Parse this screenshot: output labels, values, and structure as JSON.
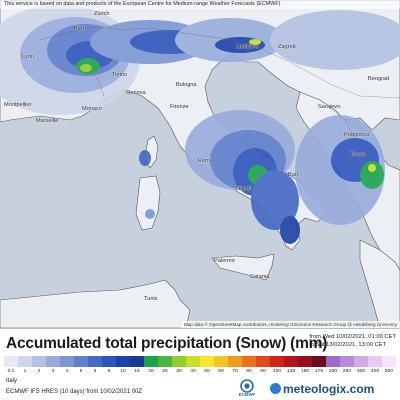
{
  "header_note": "This service is based on data and products of the European Centre for Medium-range Weather Forecasts (ECMWF)",
  "attribution": "Map data © OpenStreetMap contributors, rendering GIScience Research Group @ Heidelberg University",
  "legend": {
    "title": "Accumulated total precipitation (Snow) (mm)",
    "period_from": "from Wed 10/02/2021, 01:00 CET",
    "period_to": "to Sat 13/02/2021, 13:00 CET",
    "ticks": [
      "0.1",
      "1",
      "2",
      "3",
      "4",
      "5",
      "6",
      "8",
      "10",
      "15",
      "20",
      "25",
      "30",
      "40",
      "50",
      "60",
      "70",
      "80",
      "90",
      "100",
      "125",
      "150",
      "175",
      "200",
      "250",
      "300",
      "400",
      "500"
    ],
    "colors": [
      "#e4e9f3",
      "#cdd6ea",
      "#b3c2e2",
      "#98acdc",
      "#7d97d4",
      "#5f7fcc",
      "#4468c4",
      "#2e55bb",
      "#1d41a8",
      "#173b8f",
      "#1aa34a",
      "#47b83c",
      "#8fce2f",
      "#c8de28",
      "#f5e92a",
      "#f5c424",
      "#f19c20",
      "#ec721c",
      "#e3481a",
      "#cf2618",
      "#b5141b",
      "#93101c",
      "#6e0c1f",
      "#9b6cc7",
      "#b98ad8",
      "#d3aae5",
      "#e8c9f1",
      "#f6e4fa"
    ]
  },
  "region_label": "Italy",
  "model_label": "ECMWF IFS HRES (10 days) from 10/02/2021 00Z",
  "brand": "meteologix.com",
  "ecmwf_logo_text": "ECMWF",
  "cities": [
    {
      "name": "Zürich"
    },
    {
      "name": "Bern"
    },
    {
      "name": "Lyon"
    },
    {
      "name": "Torino"
    },
    {
      "name": "Genova"
    },
    {
      "name": "Monaco"
    },
    {
      "name": "Ljubljana"
    },
    {
      "name": "Zagreb"
    },
    {
      "name": "Firenze"
    },
    {
      "name": "Bologna"
    },
    {
      "name": "Roma"
    },
    {
      "name": "Napoli"
    },
    {
      "name": "Bari"
    },
    {
      "name": "Sarajevo"
    },
    {
      "name": "Beograd"
    },
    {
      "name": "Podgorica"
    },
    {
      "name": "Montpellier"
    },
    {
      "name": "Marseille"
    },
    {
      "name": "Palermo"
    },
    {
      "name": "Catania"
    },
    {
      "name": "Tunis"
    },
    {
      "name": "Tirana"
    }
  ]
}
